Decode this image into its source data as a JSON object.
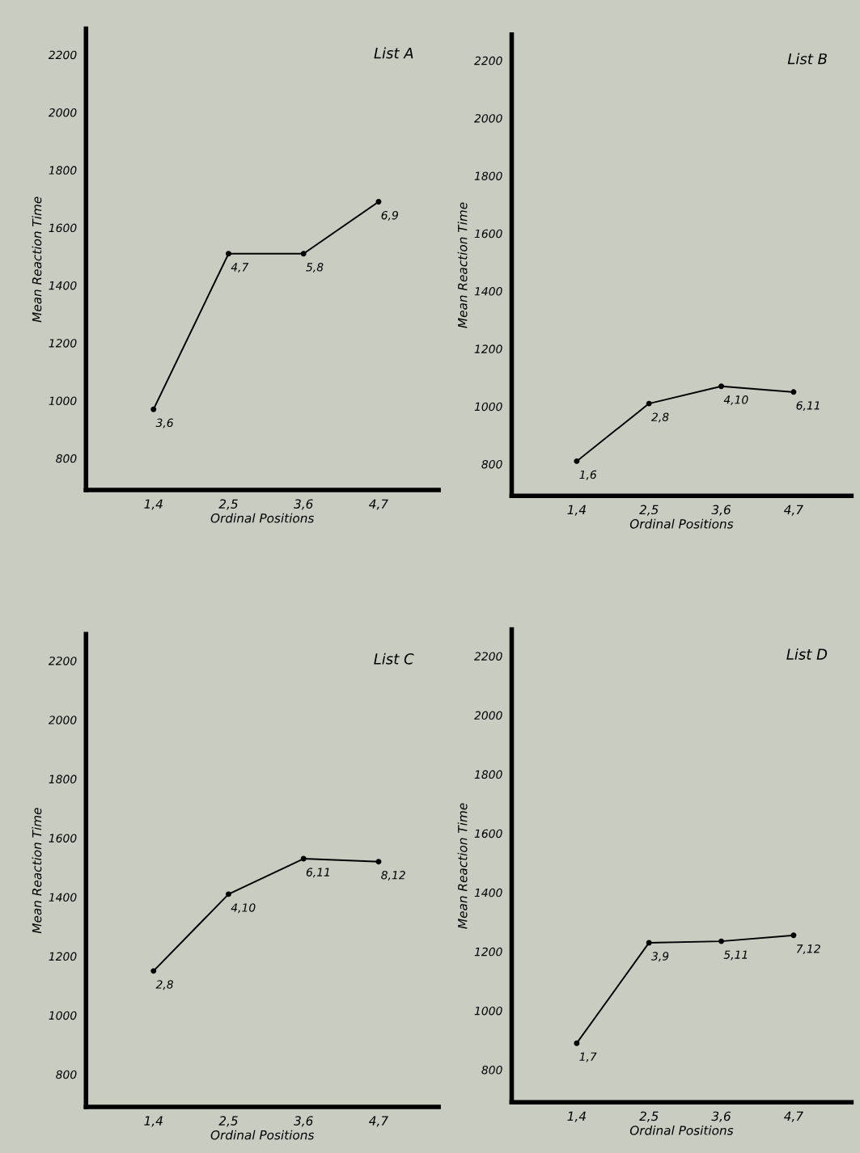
{
  "chart_data": [
    {
      "type": "line",
      "title": "List A",
      "xlabel": "Ordinal Positions",
      "ylabel": "Mean Reaction Time",
      "categories": [
        "1,4",
        "2,5",
        "3,6",
        "4,7"
      ],
      "values": [
        970,
        1510,
        1510,
        1690
      ],
      "color": "#000000",
      "marker": "circle",
      "ylim": [
        690,
        2290
      ],
      "yticks": [
        800,
        1000,
        1200,
        1400,
        1600,
        1800,
        2000,
        2200
      ],
      "grid": false,
      "annotations": [
        {
          "text": "3,6",
          "x": "1,4",
          "y": 970
        },
        {
          "text": "4,7",
          "x": "2,5",
          "y": 1510
        },
        {
          "text": "5,8",
          "x": "3,6",
          "y": 1510
        },
        {
          "text": "6,9",
          "x": "4,7",
          "y": 1690
        }
      ]
    },
    {
      "type": "line",
      "title": "List B",
      "xlabel": "Ordinal Positions",
      "ylabel": "Mean Reaction Time",
      "categories": [
        "1,4",
        "2,5",
        "3,6",
        "4,7"
      ],
      "values": [
        810,
        1010,
        1070,
        1050
      ],
      "color": "#000000",
      "marker": "circle",
      "ylim": [
        690,
        2290
      ],
      "yticks": [
        800,
        1000,
        1200,
        1400,
        1600,
        1800,
        2000,
        2200
      ],
      "grid": false,
      "annotations": [
        {
          "text": "1,6",
          "x": "1,4",
          "y": 810
        },
        {
          "text": "2,8",
          "x": "2,5",
          "y": 1010
        },
        {
          "text": "4,10",
          "x": "3,6",
          "y": 1070
        },
        {
          "text": "6,11",
          "x": "4,7",
          "y": 1050
        }
      ]
    },
    {
      "type": "line",
      "title": "List C",
      "xlabel": "Ordinal Positions",
      "ylabel": "Mean Reaction Time",
      "categories": [
        "1,4",
        "2,5",
        "3,6",
        "4,7"
      ],
      "values": [
        1150,
        1410,
        1530,
        1520
      ],
      "color": "#000000",
      "marker": "circle",
      "ylim": [
        690,
        2290
      ],
      "yticks": [
        800,
        1000,
        1200,
        1400,
        1600,
        1800,
        2000,
        2200
      ],
      "grid": false,
      "annotations": [
        {
          "text": "2,8",
          "x": "1,4",
          "y": 1150
        },
        {
          "text": "4,10",
          "x": "2,5",
          "y": 1410
        },
        {
          "text": "6,11",
          "x": "3,6",
          "y": 1530
        },
        {
          "text": "8,12",
          "x": "4,7",
          "y": 1520
        }
      ]
    },
    {
      "type": "line",
      "title": "List D",
      "xlabel": "Ordinal Positions",
      "ylabel": "Mean Reaction Time",
      "categories": [
        "1,4",
        "2,5",
        "3,6",
        "4,7"
      ],
      "values": [
        890,
        1230,
        1235,
        1255
      ],
      "color": "#000000",
      "marker": "circle",
      "ylim": [
        690,
        2290
      ],
      "yticks": [
        800,
        1000,
        1200,
        1400,
        1600,
        1800,
        2000,
        2200
      ],
      "grid": false,
      "annotations": [
        {
          "text": "1,7",
          "x": "1,4",
          "y": 890
        },
        {
          "text": "3,9",
          "x": "2,5",
          "y": 1230
        },
        {
          "text": "5,11",
          "x": "3,6",
          "y": 1235
        },
        {
          "text": "7,12",
          "x": "4,7",
          "y": 1255
        }
      ]
    }
  ]
}
